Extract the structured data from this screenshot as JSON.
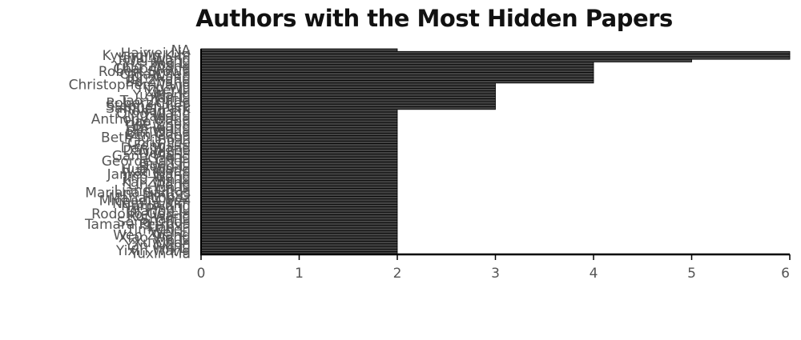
{
  "chart_data": {
    "type": "bar",
    "orientation": "horizontal",
    "title": "Authors with the Most Hidden Papers",
    "xlabel": "",
    "ylabel": "",
    "xlim": [
      0,
      6
    ],
    "xticks": [
      0,
      1,
      2,
      3,
      4,
      5,
      6
    ],
    "grid": false,
    "bar_color": "#000000",
    "categories": [
      "NA",
      "Haiwei Liu",
      "Kyungjin Kim",
      "Yang Wang",
      "Wei Wang",
      "Jing Li",
      "Ying Zhang",
      "Chao Wang",
      "Robert Brown",
      "Olga Chen",
      "Jun Wang",
      "Li Zhang",
      "Bo Zhang",
      "Christopher Wang",
      "Ying Wu",
      "Lei Li",
      "Xin Liu",
      "Yu Wang",
      "Jian Li",
      "Tao Zhang",
      "Robert Chen",
      "Stephen Lee",
      "Samuel Park",
      "Ronan Liu",
      "Qing Wang",
      "Yan Liu",
      "Anthony Wang",
      "Hao Chen",
      "Jie Zhou",
      "Hui Wang",
      "Peng Liu",
      "Bin Wang",
      "Ben Chen",
      "Beth Johnson",
      "Bo Li",
      "Chris Lee",
      "Feng Liu",
      "Dan Wang",
      "David Lee",
      "Dong Li",
      "Gang Wang",
      "Gao Li",
      "George Chen",
      "Guo Liu",
      "Hong Li",
      "Hua Wang",
      "Ivan Chen",
      "James Wang",
      "Jing Wang",
      "Jin Li",
      "Kai Zhang",
      "Lin Wang",
      "Jun Li",
      "Liang Chen",
      "Mariana Santos",
      "Ming Li",
      "Maria Lopez",
      "Michael Chen",
      "Natalia Kim",
      "Nan Wang",
      "Ping Li",
      "Qiang Liu",
      "Rodolfo Garcia",
      "Rui Wang",
      "Shan Li",
      "Song Chen",
      "Tamara Petrova",
      "Tian Li",
      "Tim Chen",
      "Wei Li",
      "Wen Zhang",
      "Xiao Wang",
      "Xin Li",
      "Xu Chen",
      "Yan Wang",
      "Yi Li",
      "Yixin Wang",
      "Yuxin Ma"
    ],
    "values": [
      2,
      6,
      6,
      6,
      5,
      4,
      4,
      4,
      4,
      4,
      4,
      4,
      4,
      3,
      3,
      3,
      3,
      3,
      3,
      3,
      3,
      3,
      3,
      2,
      2,
      2,
      2,
      2,
      2,
      2,
      2,
      2,
      2,
      2,
      2,
      2,
      2,
      2,
      2,
      2,
      2,
      2,
      2,
      2,
      2,
      2,
      2,
      2,
      2,
      2,
      2,
      2,
      2,
      2,
      2,
      2,
      2,
      2,
      2,
      2,
      2,
      2,
      2,
      2,
      2,
      2,
      2,
      2,
      2,
      2,
      2,
      2,
      2,
      2,
      2,
      2,
      2,
      2
    ]
  }
}
